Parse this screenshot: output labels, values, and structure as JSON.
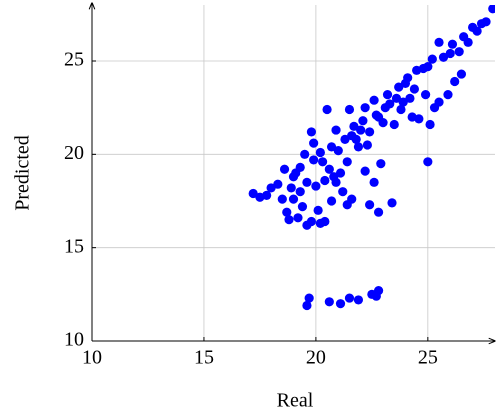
{
  "chart_data": {
    "type": "scatter",
    "xlabel": "Real",
    "ylabel": "Predicted",
    "xlim": [
      10,
      28
    ],
    "ylim": [
      10,
      28
    ],
    "xticks": [
      10,
      15,
      20,
      25
    ],
    "yticks": [
      10,
      15,
      20,
      25
    ],
    "grid": true,
    "color": "#0000ff",
    "x": [
      19.6,
      19.7,
      20.6,
      21.1,
      21.5,
      21.9,
      22.5,
      22.8,
      22.7,
      17.2,
      17.5,
      17.8,
      18.0,
      18.3,
      18.6,
      18.7,
      18.8,
      19.2,
      19.4,
      19.6,
      19.8,
      20.2,
      20.4,
      20.1,
      19.0,
      19.0,
      19.3,
      19.5,
      19.8,
      19.9,
      20.2,
      20.5,
      20.6,
      20.9,
      20.7,
      21.2,
      21.4,
      21.6,
      21.0,
      21.5,
      21.7,
      21.9,
      22.2,
      22.4,
      22.8,
      23.4,
      22.6,
      22.9,
      22.2,
      22.6,
      23.0,
      23.3,
      23.5,
      23.8,
      24.0,
      24.3,
      24.6,
      24.9,
      25.0,
      25.1,
      25.3,
      25.5,
      25.9,
      26.2,
      26.5,
      26.0,
      26.4,
      26.8,
      27.2,
      27.6,
      27.9,
      25.5,
      25.0,
      24.5,
      24.2,
      23.7,
      23.2,
      22.8,
      22.4,
      22.0,
      21.8,
      21.4,
      21.1,
      20.8,
      20.4,
      20.0,
      19.6,
      19.3,
      18.9,
      18.5,
      20.3,
      20.7,
      21.3,
      22.1,
      22.7,
      23.6,
      24.1,
      24.8,
      25.2,
      26.6,
      27.0,
      27.4,
      23.9,
      24.4,
      25.7,
      26.1,
      21.6,
      22.3,
      23.1,
      20.9,
      19.9,
      19.1
    ],
    "y": [
      11.9,
      12.3,
      12.1,
      12.0,
      12.3,
      12.2,
      12.5,
      12.7,
      12.4,
      17.9,
      17.7,
      17.8,
      18.2,
      18.4,
      19.2,
      16.9,
      16.5,
      16.6,
      17.2,
      16.2,
      16.4,
      16.3,
      16.4,
      17.0,
      17.6,
      18.8,
      19.3,
      20.0,
      21.2,
      20.6,
      20.1,
      22.4,
      19.2,
      18.5,
      17.5,
      18.0,
      17.3,
      17.6,
      20.2,
      22.4,
      21.5,
      20.4,
      19.1,
      17.3,
      16.9,
      17.4,
      18.5,
      19.5,
      22.5,
      22.9,
      21.7,
      22.7,
      21.6,
      22.4,
      23.8,
      22.0,
      21.9,
      23.2,
      19.6,
      21.6,
      22.5,
      22.8,
      23.2,
      23.9,
      24.3,
      25.4,
      25.5,
      26.0,
      26.6,
      27.1,
      27.8,
      26.0,
      24.7,
      24.5,
      23.0,
      23.6,
      23.2,
      22.0,
      21.2,
      21.3,
      20.8,
      19.6,
      19.0,
      18.8,
      18.6,
      18.3,
      18.5,
      18.0,
      18.2,
      17.6,
      19.6,
      20.4,
      20.8,
      21.8,
      22.1,
      23.0,
      24.1,
      24.6,
      25.1,
      26.3,
      26.8,
      27.0,
      22.8,
      23.5,
      25.2,
      25.9,
      21.0,
      20.5,
      22.5,
      21.3,
      19.7,
      19.0
    ]
  }
}
